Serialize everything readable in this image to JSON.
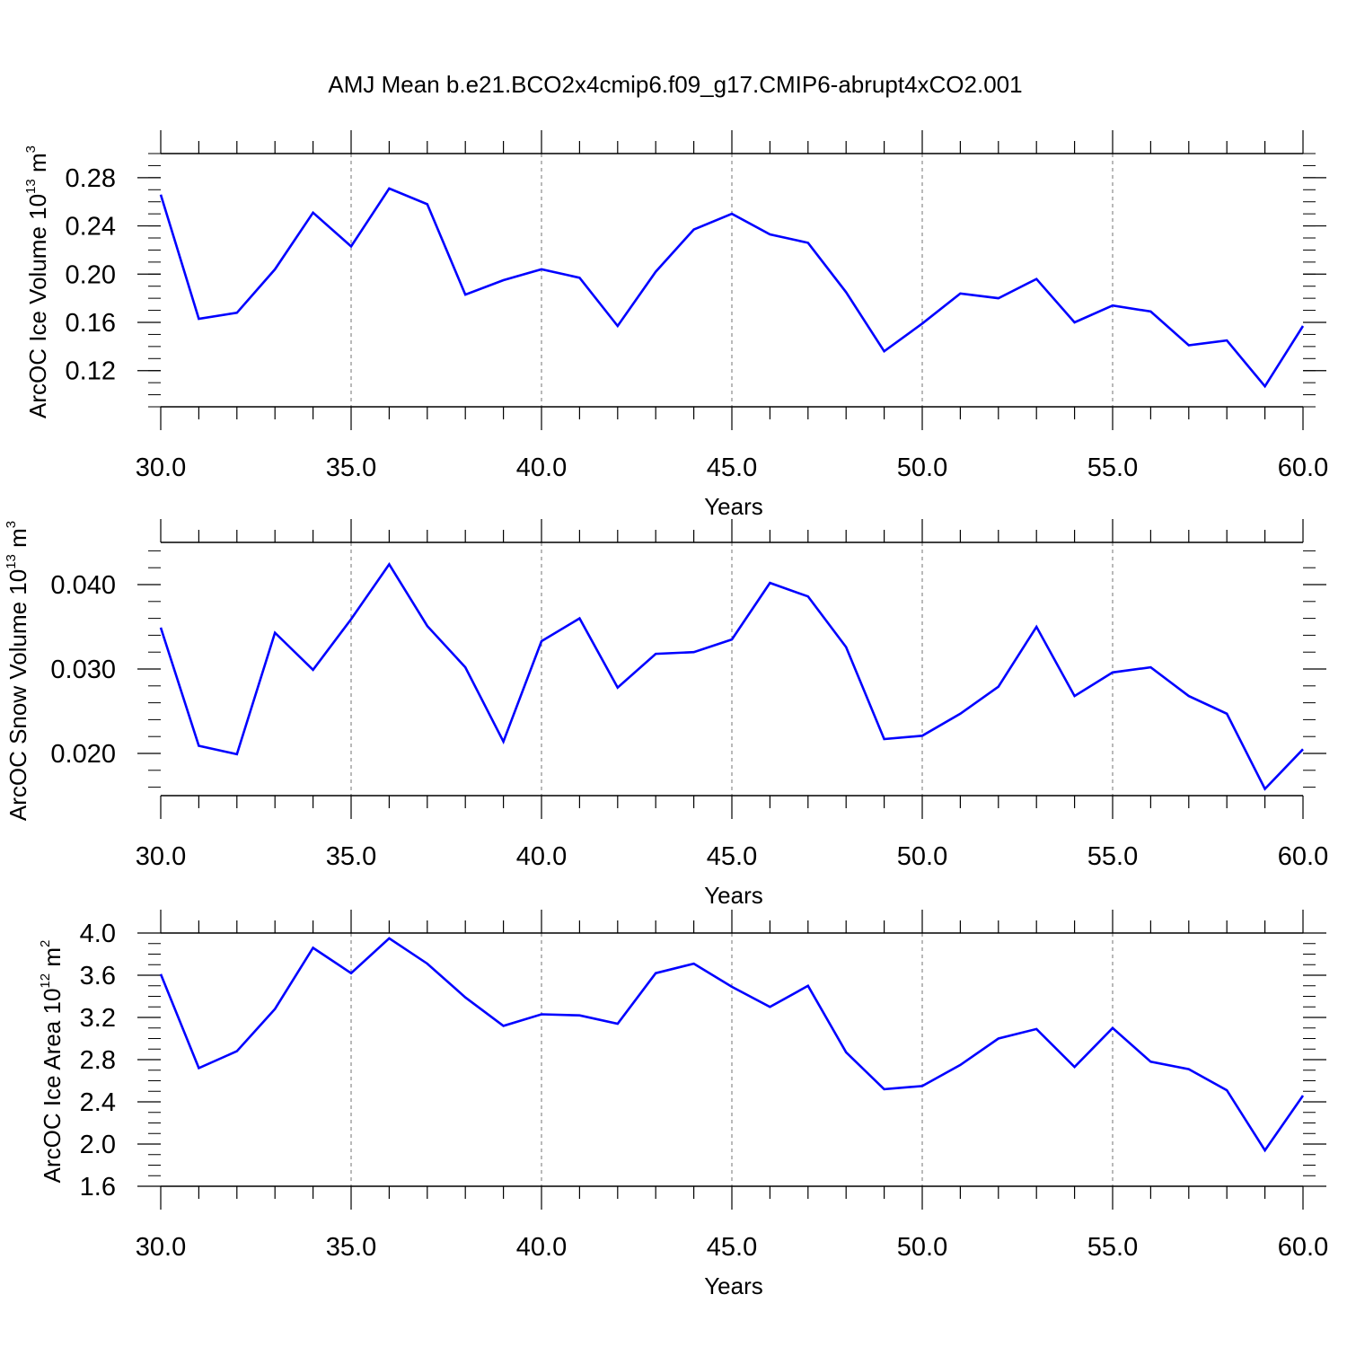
{
  "title": "AMJ Mean b.e21.BCO2x4cmip6.f09_g17.CMIP6-abrupt4xCO2.001",
  "colors": {
    "line": "#0000ff",
    "axis": "#000000",
    "grid": "#000000"
  },
  "chart_data": [
    {
      "type": "line",
      "xlabel": "Years",
      "ylabel_main": "ArcOC Ice Volume 10",
      "ylabel_exp": "13",
      "ylabel_unit": " m",
      "ylabel_unit_exp": "3",
      "xlim": [
        30,
        60
      ],
      "ylim": [
        0.09,
        0.3
      ],
      "xticks": [
        "30.0",
        "35.0",
        "40.0",
        "45.0",
        "50.0",
        "55.0",
        "60.0"
      ],
      "yticks": [
        "0.12",
        "0.16",
        "0.20",
        "0.24",
        "0.28"
      ],
      "grid": "dashed vertical at major x ticks",
      "x": [
        30,
        31,
        32,
        33,
        34,
        35,
        36,
        37,
        38,
        39,
        40,
        41,
        42,
        43,
        44,
        45,
        46,
        47,
        48,
        49,
        50,
        51,
        52,
        53,
        54,
        55,
        56,
        57,
        58,
        59,
        60
      ],
      "series": [
        {
          "values": [
            0.266,
            0.163,
            0.168,
            0.204,
            0.251,
            0.223,
            0.271,
            0.258,
            0.183,
            0.195,
            0.204,
            0.197,
            0.157,
            0.202,
            0.237,
            0.25,
            0.233,
            0.226,
            0.185,
            0.136,
            0.159,
            0.184,
            0.18,
            0.196,
            0.16,
            0.174,
            0.169,
            0.141,
            0.145,
            0.107,
            0.157
          ]
        }
      ]
    },
    {
      "type": "line",
      "xlabel": "Years",
      "ylabel_main": "ArcOC Snow Volume 10",
      "ylabel_exp": "13",
      "ylabel_unit": " m",
      "ylabel_unit_exp": "3",
      "xlim": [
        30,
        60
      ],
      "ylim": [
        0.015,
        0.045
      ],
      "xticks": [
        "30.0",
        "35.0",
        "40.0",
        "45.0",
        "50.0",
        "55.0",
        "60.0"
      ],
      "yticks": [
        "0.020",
        "0.030",
        "0.040"
      ],
      "grid": "dashed vertical at major x ticks",
      "x": [
        30,
        31,
        32,
        33,
        34,
        35,
        36,
        37,
        38,
        39,
        40,
        41,
        42,
        43,
        44,
        45,
        46,
        47,
        48,
        49,
        50,
        51,
        52,
        53,
        54,
        55,
        56,
        57,
        58,
        59,
        60
      ],
      "series": [
        {
          "values": [
            0.0349,
            0.0209,
            0.0199,
            0.0343,
            0.0299,
            0.0359,
            0.0424,
            0.0351,
            0.0302,
            0.0214,
            0.0333,
            0.036,
            0.0278,
            0.0318,
            0.032,
            0.0335,
            0.0402,
            0.0386,
            0.0326,
            0.0217,
            0.0221,
            0.0247,
            0.0279,
            0.035,
            0.0268,
            0.0296,
            0.0302,
            0.0268,
            0.0247,
            0.0158,
            0.0205
          ]
        }
      ]
    },
    {
      "type": "line",
      "xlabel": "Years",
      "ylabel_main": "ArcOC Ice Area 10",
      "ylabel_exp": "12",
      "ylabel_unit": " m",
      "ylabel_unit_exp": "2",
      "xlim": [
        30,
        60
      ],
      "ylim": [
        1.6,
        4.0
      ],
      "xticks": [
        "30.0",
        "35.0",
        "40.0",
        "45.0",
        "50.0",
        "55.0",
        "60.0"
      ],
      "yticks": [
        "1.6",
        "2.0",
        "2.4",
        "2.8",
        "3.2",
        "3.6",
        "4.0"
      ],
      "grid": "dashed vertical at major x ticks",
      "x": [
        30,
        31,
        32,
        33,
        34,
        35,
        36,
        37,
        38,
        39,
        40,
        41,
        42,
        43,
        44,
        45,
        46,
        47,
        48,
        49,
        50,
        51,
        52,
        53,
        54,
        55,
        56,
        57,
        58,
        59,
        60
      ],
      "series": [
        {
          "values": [
            3.61,
            2.72,
            2.88,
            3.28,
            3.86,
            3.62,
            3.95,
            3.71,
            3.39,
            3.12,
            3.23,
            3.22,
            3.14,
            3.62,
            3.71,
            3.49,
            3.3,
            3.5,
            2.87,
            2.52,
            2.55,
            2.75,
            3.0,
            3.09,
            2.73,
            3.1,
            2.78,
            2.71,
            2.51,
            1.94,
            2.46
          ]
        }
      ]
    }
  ]
}
